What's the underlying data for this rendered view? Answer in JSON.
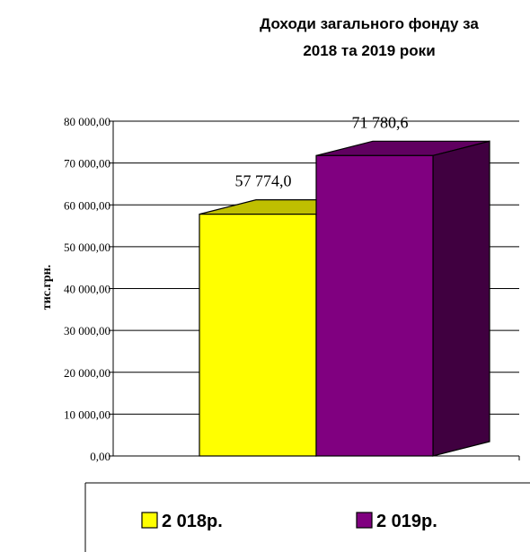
{
  "chart_data": {
    "type": "bar",
    "title_lines": [
      "Доходи загального фонду за",
      "2018 та 2019 роки"
    ],
    "ylabel": "тис.грн.",
    "xlabel": "",
    "ylim": [
      0,
      80000
    ],
    "ytick_labels": [
      "0,00",
      "10 000,00",
      "20 000,00",
      "30 000,00",
      "40 000,00",
      "50 000,00",
      "60 000,00",
      "70 000,00",
      "80 000,00"
    ],
    "grid": true,
    "legend_position": "bottom",
    "series": [
      {
        "name": "2 018р.",
        "value": 57774.0,
        "label": "57 774,0",
        "color": "#ffff00",
        "top_color": "#bfbf00",
        "side_color": "#7f7f00"
      },
      {
        "name": "2 019р.",
        "value": 71780.6,
        "label": "71 780,6",
        "color": "#800080",
        "top_color": "#600060",
        "side_color": "#400040"
      }
    ]
  }
}
